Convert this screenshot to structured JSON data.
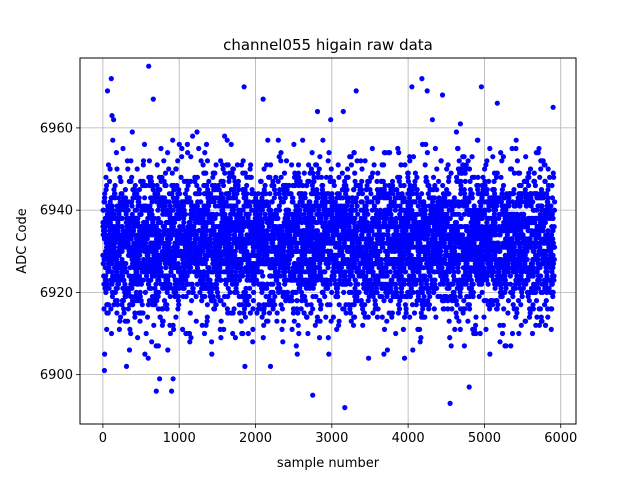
{
  "chart_data": {
    "type": "scatter",
    "title": "channel055 higain raw data",
    "xlabel": "sample number",
    "ylabel": "ADC Code",
    "xlim": [
      -300,
      6200
    ],
    "ylim": [
      6888,
      6977
    ],
    "xticks": [
      0,
      1000,
      2000,
      3000,
      4000,
      5000,
      6000
    ],
    "yticks": [
      6900,
      6920,
      6940,
      6960
    ],
    "grid": true,
    "marker_color": "#0000ff",
    "series": [
      {
        "n_samples": 5920,
        "baseline": 6932,
        "noise_sd": 9,
        "y_step": 1,
        "notable_points": [
          {
            "x": 20,
            "y": 6901
          },
          {
            "x": 60,
            "y": 6969
          },
          {
            "x": 110,
            "y": 6972
          },
          {
            "x": 120,
            "y": 6963
          },
          {
            "x": 140,
            "y": 6962
          },
          {
            "x": 600,
            "y": 6975
          },
          {
            "x": 660,
            "y": 6967
          },
          {
            "x": 700,
            "y": 6896
          },
          {
            "x": 900,
            "y": 6896
          },
          {
            "x": 920,
            "y": 6899
          },
          {
            "x": 1850,
            "y": 6970
          },
          {
            "x": 2100,
            "y": 6967
          },
          {
            "x": 2750,
            "y": 6895
          },
          {
            "x": 3170,
            "y": 6892
          },
          {
            "x": 3320,
            "y": 6969
          },
          {
            "x": 4050,
            "y": 6970
          },
          {
            "x": 4180,
            "y": 6972
          },
          {
            "x": 4250,
            "y": 6969
          },
          {
            "x": 4550,
            "y": 6893
          },
          {
            "x": 4450,
            "y": 6968
          },
          {
            "x": 4800,
            "y": 6897
          },
          {
            "x": 4960,
            "y": 6970
          },
          {
            "x": 5900,
            "y": 6965
          }
        ]
      }
    ]
  }
}
